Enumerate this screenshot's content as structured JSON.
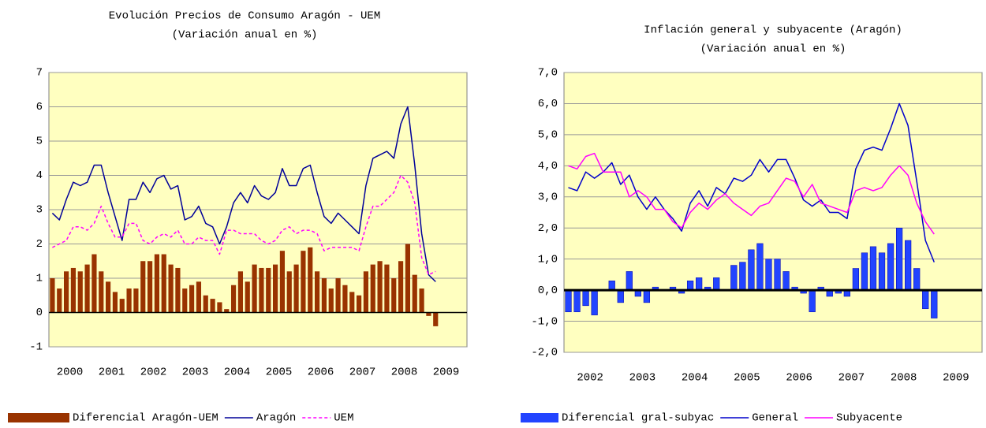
{
  "chart_data": [
    {
      "type": "bar",
      "title": "Evolución Precios de Consumo Aragón - UEM",
      "subtitle": "(Variación anual en %)",
      "categories": [
        null,
        null,
        null,
        "2000",
        null,
        null,
        null,
        null,
        null,
        "2001",
        null,
        null,
        null,
        null,
        null,
        "2002",
        null,
        null,
        null,
        null,
        null,
        "2003",
        null,
        null,
        null,
        null,
        null,
        "2004",
        null,
        null,
        null,
        null,
        null,
        "2005",
        null,
        null,
        null,
        null,
        null,
        "2006",
        null,
        null,
        null,
        null,
        null,
        "2007",
        null,
        null,
        null,
        null,
        null,
        "2008",
        null,
        null,
        null,
        null,
        null,
        "2009",
        null,
        null
      ],
      "series": [
        {
          "name": "Diferencial Aragón-UEM",
          "type": "bar",
          "color": "#993300",
          "values": [
            1.0,
            0.7,
            1.2,
            1.3,
            1.2,
            1.4,
            1.7,
            1.2,
            0.9,
            0.6,
            0.4,
            0.7,
            0.7,
            1.5,
            1.5,
            1.7,
            1.7,
            1.4,
            1.3,
            0.7,
            0.8,
            0.9,
            0.5,
            0.4,
            0.3,
            0.1,
            0.8,
            1.2,
            0.9,
            1.4,
            1.3,
            1.3,
            1.4,
            1.8,
            1.2,
            1.4,
            1.8,
            1.9,
            1.2,
            1.0,
            0.7,
            1.0,
            0.8,
            0.6,
            0.5,
            1.2,
            1.4,
            1.5,
            1.4,
            1.0,
            1.5,
            2.0,
            1.1,
            0.7,
            -0.1,
            -0.4,
            null,
            null,
            null,
            null
          ]
        },
        {
          "name": "Aragón",
          "type": "line",
          "color": "#000099",
          "values": [
            2.9,
            2.7,
            3.3,
            3.8,
            3.7,
            3.8,
            4.3,
            4.3,
            3.5,
            2.8,
            2.1,
            3.3,
            3.3,
            3.8,
            3.5,
            3.9,
            4.0,
            3.6,
            3.7,
            2.7,
            2.8,
            3.1,
            2.6,
            2.5,
            2.0,
            2.5,
            3.2,
            3.5,
            3.2,
            3.7,
            3.4,
            3.3,
            3.5,
            4.2,
            3.7,
            3.7,
            4.2,
            4.3,
            3.5,
            2.8,
            2.6,
            2.9,
            2.7,
            2.5,
            2.3,
            3.7,
            4.5,
            4.6,
            4.7,
            4.5,
            5.5,
            6.0,
            4.3,
            2.3,
            1.1,
            0.9,
            null,
            null,
            null,
            null
          ]
        },
        {
          "name": "UEM",
          "type": "line",
          "dash": true,
          "color": "#ff00ff",
          "values": [
            1.9,
            2.0,
            2.1,
            2.5,
            2.5,
            2.4,
            2.6,
            3.1,
            2.6,
            2.2,
            2.2,
            2.6,
            2.6,
            2.1,
            2.0,
            2.2,
            2.3,
            2.2,
            2.4,
            2.0,
            2.0,
            2.2,
            2.1,
            2.1,
            1.7,
            2.4,
            2.4,
            2.3,
            2.3,
            2.3,
            2.1,
            2.0,
            2.1,
            2.4,
            2.5,
            2.3,
            2.4,
            2.4,
            2.3,
            1.8,
            1.9,
            1.9,
            1.9,
            1.9,
            1.8,
            2.5,
            3.1,
            3.1,
            3.3,
            3.5,
            4.0,
            3.8,
            3.2,
            1.6,
            1.1,
            1.2,
            null,
            null,
            null,
            null
          ]
        }
      ],
      "ylim": [
        -1,
        7
      ],
      "yticks": [
        -1,
        0,
        1,
        2,
        3,
        4,
        5,
        6,
        7
      ],
      "grid": true
    },
    {
      "type": "bar",
      "title": "Inflación general y subyacente (Aragón)",
      "subtitle": "(Variación anual en %)",
      "categories": [
        null,
        null,
        null,
        "2002",
        null,
        null,
        null,
        null,
        null,
        "2003",
        null,
        null,
        null,
        null,
        null,
        "2004",
        null,
        null,
        null,
        null,
        null,
        "2005",
        null,
        null,
        null,
        null,
        null,
        "2006",
        null,
        null,
        null,
        null,
        null,
        "2007",
        null,
        null,
        null,
        null,
        null,
        "2008",
        null,
        null,
        null,
        null,
        null,
        "2009",
        null,
        null
      ],
      "series": [
        {
          "name": "Diferencial gral-subyac",
          "type": "bar",
          "color": "#2244ff",
          "values": [
            -0.7,
            -0.7,
            -0.5,
            -0.8,
            0.0,
            0.3,
            -0.4,
            0.6,
            -0.2,
            -0.4,
            0.1,
            0.0,
            0.1,
            -0.1,
            0.3,
            0.4,
            0.1,
            0.4,
            0.0,
            0.8,
            0.9,
            1.3,
            1.5,
            1.0,
            1.0,
            0.6,
            0.1,
            -0.1,
            -0.7,
            0.1,
            -0.2,
            -0.1,
            -0.2,
            0.7,
            1.2,
            1.4,
            1.2,
            1.5,
            2.0,
            1.6,
            0.7,
            -0.6,
            -0.9,
            null,
            null,
            null,
            null,
            null
          ]
        },
        {
          "name": "General",
          "type": "line",
          "color": "#0000cc",
          "values": [
            3.3,
            3.2,
            3.8,
            3.6,
            3.8,
            4.1,
            3.4,
            3.7,
            3.0,
            2.6,
            3.0,
            2.6,
            2.3,
            1.9,
            2.8,
            3.2,
            2.7,
            3.3,
            3.1,
            3.6,
            3.5,
            3.7,
            4.2,
            3.8,
            4.2,
            4.2,
            3.6,
            2.9,
            2.7,
            2.9,
            2.5,
            2.5,
            2.3,
            3.9,
            4.5,
            4.6,
            4.5,
            5.2,
            6.0,
            5.3,
            3.5,
            1.6,
            0.9,
            null,
            null,
            null,
            null,
            null
          ]
        },
        {
          "name": "Subyacente",
          "type": "line",
          "color": "#ff00ff",
          "values": [
            4.0,
            3.9,
            4.3,
            4.4,
            3.8,
            3.8,
            3.8,
            3.0,
            3.2,
            3.0,
            2.6,
            2.6,
            2.2,
            2.0,
            2.5,
            2.8,
            2.6,
            2.9,
            3.1,
            2.8,
            2.6,
            2.4,
            2.7,
            2.8,
            3.2,
            3.6,
            3.5,
            3.0,
            3.4,
            2.8,
            2.7,
            2.6,
            2.5,
            3.2,
            3.3,
            3.2,
            3.3,
            3.7,
            4.0,
            3.7,
            2.8,
            2.2,
            1.8,
            null,
            null,
            null,
            null,
            null
          ]
        }
      ],
      "ylim": [
        -2,
        7
      ],
      "yticks": [
        {
          "value": -2,
          "label": "-2,0"
        },
        {
          "value": -1,
          "label": "-1,0"
        },
        {
          "value": 0,
          "label": "0,0"
        },
        {
          "value": 1,
          "label": "1,0"
        },
        {
          "value": 2,
          "label": "2,0"
        },
        {
          "value": 3,
          "label": "3,0"
        },
        {
          "value": 4,
          "label": "4,0"
        },
        {
          "value": 5,
          "label": "5,0"
        },
        {
          "value": 6,
          "label": "6,0"
        },
        {
          "value": 7,
          "label": "7,0"
        }
      ],
      "grid": true
    }
  ]
}
